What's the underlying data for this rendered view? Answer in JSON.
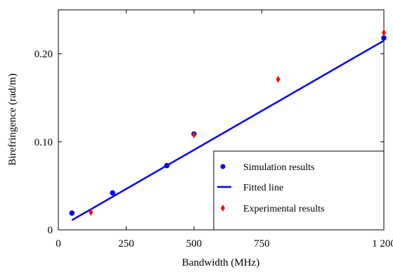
{
  "chart_data": {
    "type": "scatter",
    "xlabel": "Bandwidth (MHz)",
    "ylabel": "Birefringence (rad/m)",
    "xlim": [
      0,
      1200
    ],
    "ylim": [
      0,
      0.25
    ],
    "x_ticks": [
      0,
      250,
      500,
      750,
      1200
    ],
    "x_tick_labels": [
      "0",
      "250",
      "500",
      "750",
      "1 200"
    ],
    "y_ticks": [
      0,
      0.1,
      0.2
    ],
    "y_tick_labels": [
      "0",
      "0.10",
      "0.20"
    ],
    "grid": false,
    "legend_position": "bottom-right",
    "series": [
      {
        "name": "Simulation results",
        "kind": "marker",
        "marker": "circle",
        "color": "#0000ff",
        "points": [
          [
            50,
            0.019
          ],
          [
            200,
            0.042
          ],
          [
            400,
            0.073
          ],
          [
            500,
            0.109
          ],
          [
            1200,
            0.218
          ]
        ]
      },
      {
        "name": "Fitted line",
        "kind": "line",
        "color": "#0000ff",
        "points": [
          [
            50,
            0.011
          ],
          [
            1200,
            0.215
          ]
        ]
      },
      {
        "name": "Experimental results",
        "kind": "marker",
        "marker": "diamond",
        "color": "#ff0000",
        "points": [
          [
            120,
            0.02
          ],
          [
            500,
            0.108
          ],
          [
            810,
            0.171
          ],
          [
            1200,
            0.224
          ]
        ]
      }
    ]
  }
}
